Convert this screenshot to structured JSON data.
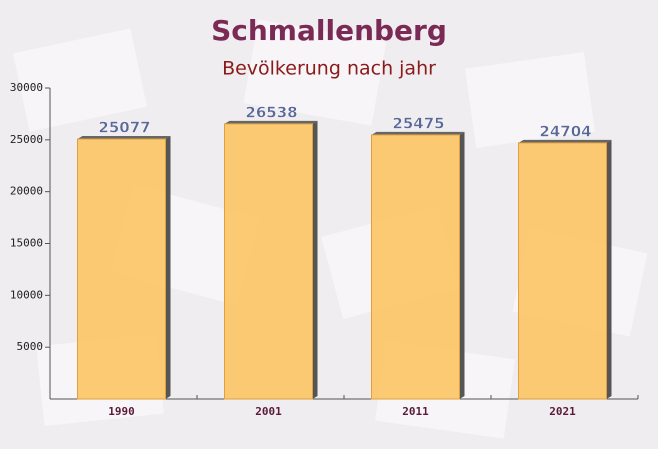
{
  "chart_data": {
    "type": "bar",
    "title": "Schmallenberg",
    "subtitle": "Bevölkerung nach jahr",
    "categories": [
      "1990",
      "2001",
      "2011",
      "2021"
    ],
    "values": [
      25077,
      26538,
      25475,
      24704
    ],
    "color": "#fdc668",
    "ylim": [
      0,
      30000
    ],
    "yticks": [
      5000,
      10000,
      15000,
      20000,
      25000,
      30000
    ]
  }
}
